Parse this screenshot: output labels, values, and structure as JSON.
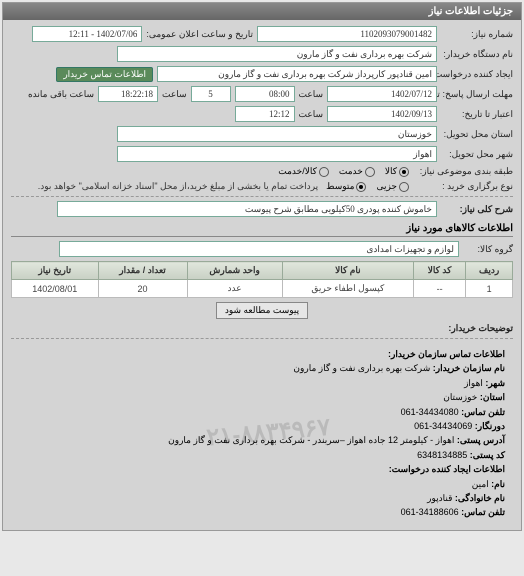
{
  "panel_title": "جزئیات اطلاعات نیاز",
  "fields": {
    "need_no_label": "شماره نیاز:",
    "need_no": "1102093079001482",
    "announce_label": "تاریخ و ساعت اعلان عمومی:",
    "announce_value": "1402/07/06 - 12:11",
    "buyer_org_label": "نام دستگاه خریدار:",
    "buyer_org": "شرکت بهره برداری نفت و گاز مارون",
    "requester_label": "ایجاد کننده درخواست:",
    "requester": "امین قنادپور کارپرداز شرکت بهره برداری نفت و گاز مارون",
    "contact_btn": "اطلاعات تماس خریدار",
    "deadline_label": "مهلت ارسال پاسخ: تا تاریخ:",
    "deadline_date": "1402/07/12",
    "time_label": "ساعت",
    "deadline_time": "08:00",
    "remain_days": "5",
    "remain_time_label": "ساعت باقی مانده",
    "remain_time": "18:22:18",
    "validity_label": "اعتبار تا تاریخ:",
    "validity_date": "1402/09/13",
    "validity_time": "12:12",
    "province_label": "استان محل تحویل:",
    "province": "خوزستان",
    "city_label": "شهر محل تحویل:",
    "city": "اهواز",
    "class_label": "طبقه بندی موضوعی نیاز:",
    "class_goods": "کالا",
    "class_service": "خدمت",
    "class_both": "کالا/خدمت",
    "purchase_type_label": "نوع برگزاری خرید :",
    "pt_medium": "متوسط",
    "pt_partial": "جزیی",
    "purchase_note": "پرداخت تمام یا بخشی از مبلغ خرید،از محل \"اسناد خزانه اسلامی\" خواهد بود.",
    "need_title_label": "شرح کلی نیاز:",
    "need_title": "خاموش کننده پودری 50کیلویی مطابق شرح پیوست",
    "goods_section": "اطلاعات کالاهای مورد نیاز",
    "group_label": "گروه کالا:",
    "group_value": "لوازم و تجهیزات امدادی",
    "attach_btn": "پیوست مطالعه شود",
    "desc_label": "توضیحات خریدار:"
  },
  "table": {
    "columns": [
      "ردیف",
      "کد کالا",
      "نام کالا",
      "واحد شمارش",
      "تعداد / مقدار",
      "تاریخ نیاز"
    ],
    "rows": [
      [
        "1",
        "--",
        "کپسول اطفاء حریق",
        "عدد",
        "20",
        "1402/08/01"
      ]
    ]
  },
  "contact": {
    "header": "اطلاعات تماس سازمان خریدار:",
    "org_label": "نام سازمان خریدار:",
    "org": "شرکت بهره برداری نفت و گاز مارون",
    "city_label": "شهر:",
    "city": "اهواز",
    "province_label": "استان:",
    "province": "خوزستان",
    "phone_label": "تلفن تماس:",
    "phone": "34434080-061",
    "fax_label": "دورنگار:",
    "fax": "34434069-061",
    "address_label": "آدرس پستی:",
    "address": "اهواز - کیلومتر 12 جاده اهواز –سربندر - شرکت بهره برداری نفت و گاز مارون",
    "postal_label": "کد پستی:",
    "postal": "6348134885",
    "req_header": "اطلاعات ایجاد کننده درخواست:",
    "name_label": "نام:",
    "name": "امین",
    "lname_label": "نام خانوادگی:",
    "lname": "قنادپور",
    "req_phone_label": "تلفن تماس:",
    "req_phone": "34188606-061"
  },
  "watermark": "۰۲۱-۸۸۳۴۹۶۷"
}
